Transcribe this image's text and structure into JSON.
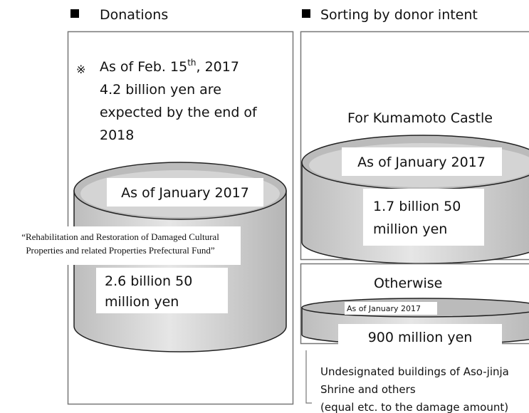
{
  "left": {
    "title": "Donations",
    "note_mark": "※",
    "note_first": {
      "pre": "As of Feb. 15",
      "sup": "th",
      "post": ", 2017"
    },
    "note_lines": [
      "4.2 billion yen are",
      "expected by the end of",
      "2018"
    ],
    "cylinder_label": "As of January 2017",
    "fund_name": [
      "“Rehabilitation and Restoration of Damaged Cultural",
      "Properties and related Properties Prefectural Fund”"
    ],
    "amount": [
      "2.6 billion 50",
      "million yen"
    ]
  },
  "right": {
    "title": "Sorting by donor intent",
    "castle": {
      "heading": "For Kumamoto Castle",
      "cylinder_label": "As of January 2017",
      "amount": [
        "1.7 billion 50",
        "million yen"
      ]
    },
    "other": {
      "heading": "Otherwise",
      "cylinder_label": "As of January 2017",
      "amount": "900 million yen",
      "description": [
        "Undesignated buildings of Aso-jinja",
        "Shrine and others",
        "(equal etc. to the damage amount)"
      ]
    }
  }
}
